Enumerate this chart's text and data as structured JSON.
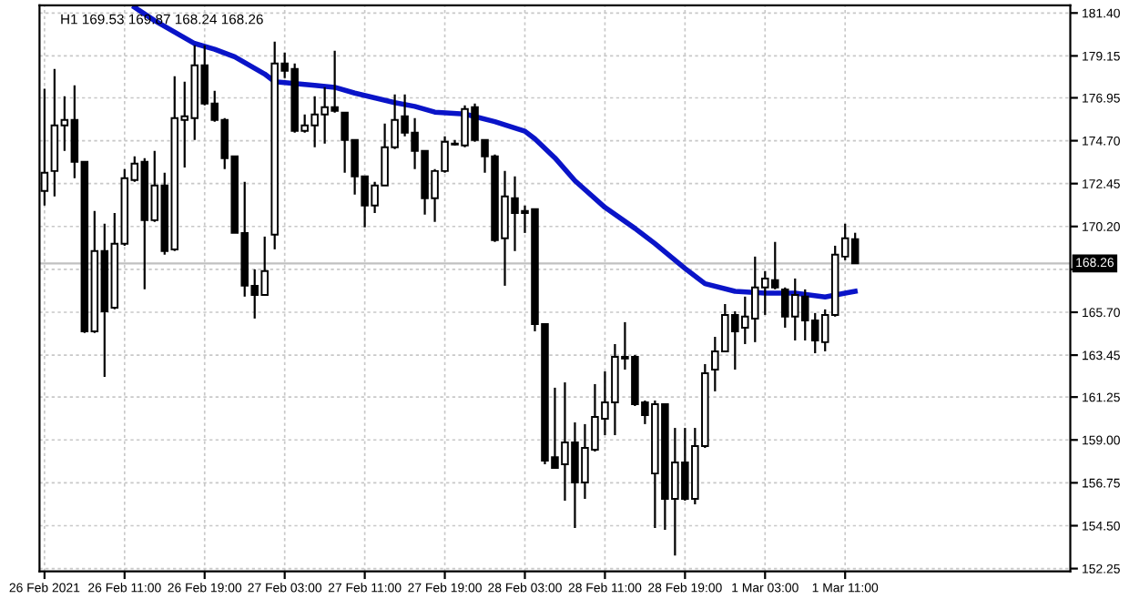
{
  "chart_data": {
    "type": "candlestick",
    "title": "H1 169.53 169.87 168.24 168.26",
    "x": [
      "2021-02-26T03:00",
      "2021-02-26T04:00",
      "2021-02-26T05:00",
      "2021-02-26T06:00",
      "2021-02-26T07:00",
      "2021-02-26T08:00",
      "2021-02-26T09:00",
      "2021-02-26T10:00",
      "2021-02-26T11:00",
      "2021-02-26T12:00",
      "2021-02-26T13:00",
      "2021-02-26T14:00",
      "2021-02-26T15:00",
      "2021-02-26T16:00",
      "2021-02-26T17:00",
      "2021-02-26T18:00",
      "2021-02-26T19:00",
      "2021-02-26T20:00",
      "2021-02-26T21:00",
      "2021-02-26T22:00",
      "2021-02-26T23:00",
      "2021-02-27T00:00",
      "2021-02-27T01:00",
      "2021-02-27T02:00",
      "2021-02-27T03:00",
      "2021-02-27T04:00",
      "2021-02-27T05:00",
      "2021-02-27T06:00",
      "2021-02-27T07:00",
      "2021-02-27T08:00",
      "2021-02-27T09:00",
      "2021-02-27T10:00",
      "2021-02-27T11:00",
      "2021-02-27T12:00",
      "2021-02-27T13:00",
      "2021-02-27T14:00",
      "2021-02-27T15:00",
      "2021-02-27T16:00",
      "2021-02-27T17:00",
      "2021-02-27T18:00",
      "2021-02-27T19:00",
      "2021-02-27T20:00",
      "2021-02-27T21:00",
      "2021-02-27T22:00",
      "2021-02-27T23:00",
      "2021-02-28T00:00",
      "2021-02-28T01:00",
      "2021-02-28T02:00",
      "2021-02-28T03:00",
      "2021-02-28T04:00",
      "2021-02-28T05:00",
      "2021-02-28T06:00",
      "2021-02-28T07:00",
      "2021-02-28T08:00",
      "2021-02-28T09:00",
      "2021-02-28T10:00",
      "2021-02-28T11:00",
      "2021-02-28T12:00",
      "2021-02-28T13:00",
      "2021-02-28T14:00",
      "2021-02-28T15:00",
      "2021-02-28T16:00",
      "2021-02-28T17:00",
      "2021-02-28T18:00",
      "2021-02-28T19:00",
      "2021-02-28T20:00",
      "2021-02-28T21:00",
      "2021-02-28T22:00",
      "2021-02-28T23:00",
      "2021-03-01T00:00",
      "2021-03-01T01:00",
      "2021-03-01T02:00",
      "2021-03-01T03:00",
      "2021-03-01T04:00",
      "2021-03-01T05:00",
      "2021-03-01T06:00",
      "2021-03-01T07:00",
      "2021-03-01T08:00",
      "2021-03-01T09:00",
      "2021-03-01T10:00",
      "2021-03-01T11:00",
      "2021-03-01T12:00"
    ],
    "ohlc": [
      [
        172.06,
        177.42,
        171.3,
        173.02
      ],
      [
        173.11,
        178.47,
        171.78,
        175.5
      ],
      [
        175.5,
        177.03,
        174.17,
        175.79
      ],
      [
        175.79,
        177.61,
        172.73,
        173.59
      ],
      [
        173.59,
        173.59,
        164.61,
        164.7
      ],
      [
        164.7,
        171.01,
        164.61,
        168.91
      ],
      [
        168.91,
        170.34,
        162.31,
        165.75
      ],
      [
        165.94,
        170.91,
        165.85,
        169.29
      ],
      [
        169.29,
        173.21,
        169.19,
        172.73
      ],
      [
        172.64,
        173.88,
        172.54,
        173.5
      ],
      [
        173.59,
        173.78,
        166.9,
        170.53
      ],
      [
        170.53,
        174.17,
        170.44,
        172.35
      ],
      [
        172.35,
        173.02,
        168.72,
        168.91
      ],
      [
        169.0,
        178.08,
        168.91,
        175.89
      ],
      [
        175.79,
        177.8,
        173.3,
        175.98
      ],
      [
        175.89,
        179.71,
        174.74,
        178.66
      ],
      [
        178.66,
        179.71,
        176.56,
        176.65
      ],
      [
        176.65,
        177.32,
        175.69,
        175.79
      ],
      [
        175.79,
        175.89,
        173.21,
        173.78
      ],
      [
        173.88,
        173.88,
        169.86,
        169.86
      ],
      [
        169.86,
        172.54,
        166.52,
        167.09
      ],
      [
        167.09,
        167.95,
        165.37,
        166.61
      ],
      [
        166.61,
        169.67,
        166.61,
        167.86
      ],
      [
        169.77,
        179.9,
        169.0,
        178.75
      ],
      [
        178.75,
        179.33,
        177.99,
        178.37
      ],
      [
        178.47,
        178.75,
        175.12,
        175.22
      ],
      [
        175.22,
        176.08,
        175.12,
        175.5
      ],
      [
        175.5,
        177.03,
        174.36,
        176.08
      ],
      [
        176.08,
        177.51,
        174.55,
        176.46
      ],
      [
        176.46,
        179.42,
        176.17,
        176.27
      ],
      [
        176.17,
        176.17,
        173.02,
        174.74
      ],
      [
        174.74,
        174.74,
        171.87,
        172.83
      ],
      [
        172.83,
        172.83,
        170.15,
        171.3
      ],
      [
        171.3,
        172.54,
        170.91,
        172.35
      ],
      [
        172.35,
        175.6,
        172.35,
        174.36
      ],
      [
        174.36,
        177.13,
        174.26,
        175.79
      ],
      [
        175.98,
        177.13,
        174.93,
        175.12
      ],
      [
        175.12,
        175.89,
        173.21,
        174.17
      ],
      [
        174.17,
        174.17,
        170.82,
        171.68
      ],
      [
        171.68,
        173.21,
        170.44,
        173.11
      ],
      [
        173.11,
        174.93,
        173.02,
        174.64
      ],
      [
        174.55,
        174.74,
        174.45,
        174.5
      ],
      [
        174.45,
        176.56,
        174.36,
        176.36
      ],
      [
        176.46,
        176.65,
        174.64,
        174.74
      ],
      [
        174.74,
        174.74,
        173.02,
        173.88
      ],
      [
        173.88,
        173.97,
        169.39,
        169.48
      ],
      [
        169.58,
        173.11,
        167.09,
        171.78
      ],
      [
        171.68,
        172.83,
        168.91,
        170.91
      ],
      [
        171.01,
        171.3,
        169.86,
        170.91
      ],
      [
        171.11,
        171.11,
        164.7,
        165.08
      ],
      [
        165.08,
        165.08,
        157.72,
        157.91
      ],
      [
        158.1,
        161.74,
        157.53,
        157.53
      ],
      [
        157.72,
        162.02,
        155.81,
        158.87
      ],
      [
        158.87,
        159.92,
        154.38,
        156.77
      ],
      [
        156.77,
        159.83,
        155.91,
        158.58
      ],
      [
        158.49,
        161.93,
        158.39,
        160.21
      ],
      [
        160.11,
        162.6,
        159.25,
        160.97
      ],
      [
        160.97,
        164.03,
        159.25,
        163.36
      ],
      [
        163.27,
        165.18,
        162.69,
        163.36
      ],
      [
        163.36,
        163.46,
        160.78,
        160.88
      ],
      [
        160.97,
        161.07,
        159.83,
        160.3
      ],
      [
        157.24,
        161.07,
        154.38,
        160.88
      ],
      [
        160.88,
        160.88,
        154.28,
        155.91
      ],
      [
        155.91,
        159.63,
        152.94,
        157.82
      ],
      [
        157.82,
        159.63,
        155.81,
        155.91
      ],
      [
        155.91,
        159.63,
        155.62,
        158.68
      ],
      [
        158.68,
        162.98,
        158.58,
        162.5
      ],
      [
        162.69,
        164.41,
        161.55,
        163.65
      ],
      [
        163.65,
        166.13,
        163.65,
        165.56
      ],
      [
        165.56,
        165.75,
        162.69,
        164.7
      ],
      [
        164.89,
        166.52,
        164.03,
        165.47
      ],
      [
        165.37,
        168.62,
        164.13,
        167.0
      ],
      [
        167.0,
        167.86,
        165.56,
        167.47
      ],
      [
        167.38,
        169.39,
        166.9,
        167.0
      ],
      [
        166.9,
        167.0,
        164.89,
        165.47
      ],
      [
        165.47,
        167.47,
        164.22,
        166.61
      ],
      [
        166.52,
        166.9,
        164.22,
        165.27
      ],
      [
        165.27,
        165.66,
        163.55,
        164.22
      ],
      [
        164.13,
        165.85,
        163.65,
        165.56
      ],
      [
        165.56,
        169.19,
        165.47,
        168.72
      ],
      [
        168.62,
        170.34,
        168.43,
        169.58
      ],
      [
        169.53,
        169.87,
        168.24,
        168.26
      ]
    ],
    "series": [
      {
        "type": "line",
        "color": "#0a14c8",
        "x": [
          "2021-02-26T12:00",
          "2021-02-26T14:00",
          "2021-02-26T18:00",
          "2021-02-26T20:00",
          "2021-02-26T22:00",
          "2021-02-27T01:00",
          "2021-02-27T02:00",
          "2021-02-27T06:00",
          "2021-02-27T08:00",
          "2021-02-27T10:00",
          "2021-02-27T14:00",
          "2021-02-27T16:00",
          "2021-02-27T18:00",
          "2021-02-27T21:00",
          "2021-02-28T00:00",
          "2021-02-28T03:00",
          "2021-02-28T04:00",
          "2021-02-28T06:00",
          "2021-02-28T08:00",
          "2021-02-28T11:00",
          "2021-02-28T14:00",
          "2021-02-28T16:00",
          "2021-02-28T19:00",
          "2021-02-28T21:00",
          "2021-03-01T00:00",
          "2021-03-01T03:00",
          "2021-03-01T06:00",
          "2021-03-01T09:00",
          "2021-03-01T11:00",
          "2021-03-01T12:00"
        ],
        "values": [
          181.7,
          181.0,
          179.8,
          179.5,
          179.1,
          178.2,
          177.8,
          177.6,
          177.5,
          177.2,
          176.7,
          176.5,
          176.2,
          176.1,
          175.7,
          175.2,
          174.8,
          173.8,
          172.6,
          171.2,
          170.1,
          169.3,
          168.0,
          167.2,
          166.8,
          166.7,
          166.7,
          166.5,
          166.7,
          166.8
        ]
      }
    ],
    "ref_lines": [
      {
        "axis": "y",
        "value": 168.26,
        "label": "168.26",
        "color": "#c0c0c0"
      }
    ],
    "xlim": [
      "2021-02-26T02:30",
      "2021-03-02T09:30"
    ],
    "xticks": [
      {
        "value": "2021-02-26T03:00",
        "label": "26 Feb 2021"
      },
      {
        "value": "2021-02-26T11:00",
        "label": "26 Feb 11:00"
      },
      {
        "value": "2021-02-26T19:00",
        "label": "26 Feb 19:00"
      },
      {
        "value": "2021-02-27T03:00",
        "label": "27 Feb 03:00"
      },
      {
        "value": "2021-02-27T11:00",
        "label": "27 Feb 11:00"
      },
      {
        "value": "2021-02-27T19:00",
        "label": "27 Feb 19:00"
      },
      {
        "value": "2021-02-28T03:00",
        "label": "28 Feb 03:00"
      },
      {
        "value": "2021-02-28T11:00",
        "label": "28 Feb 11:00"
      },
      {
        "value": "2021-02-28T19:00",
        "label": "28 Feb 19:00"
      },
      {
        "value": "2021-03-01T03:00",
        "label": "1 Mar 03:00"
      },
      {
        "value": "2021-03-01T11:00",
        "label": "1 Mar 11:00"
      }
    ],
    "ylim": [
      152.1,
      181.8
    ],
    "yticks": [
      {
        "value": 181.4,
        "label": "181.40"
      },
      {
        "value": 179.15,
        "label": "179.15"
      },
      {
        "value": 176.95,
        "label": "176.95"
      },
      {
        "value": 174.7,
        "label": "174.70"
      },
      {
        "value": 172.45,
        "label": "172.45"
      },
      {
        "value": 170.2,
        "label": "170.20"
      },
      {
        "value": 167.95,
        "label": null
      },
      {
        "value": 165.7,
        "label": "165.70"
      },
      {
        "value": 163.45,
        "label": "163.45"
      },
      {
        "value": 161.25,
        "label": "161.25"
      },
      {
        "value": 159.0,
        "label": "159.00"
      },
      {
        "value": 156.75,
        "label": "156.75"
      },
      {
        "value": 154.5,
        "label": "154.50"
      },
      {
        "value": 152.25,
        "label": "152.25"
      }
    ],
    "grid": true
  }
}
